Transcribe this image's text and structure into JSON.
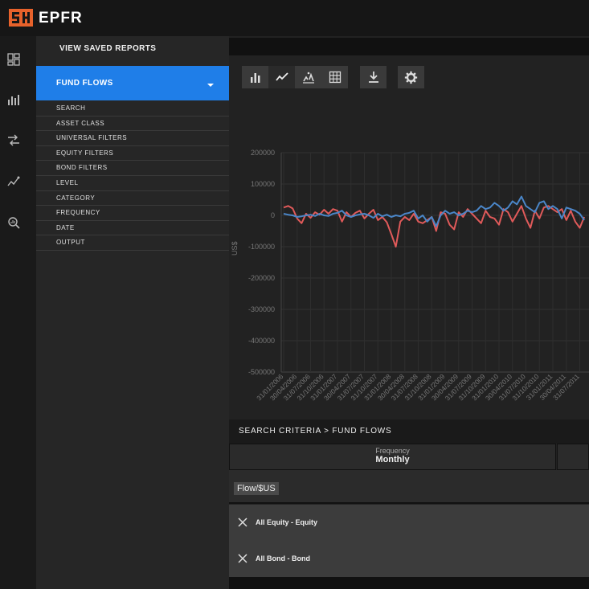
{
  "app": {
    "brand": "EPFR"
  },
  "sidebar": {
    "saved_reports": "VIEW SAVED REPORTS",
    "active_section": "FUND FLOWS",
    "items": [
      {
        "label": "SEARCH"
      },
      {
        "label": "ASSET CLASS"
      },
      {
        "label": "UNIVERSAL FILTERS"
      },
      {
        "label": "EQUITY FILTERS"
      },
      {
        "label": "BOND FILTERS"
      },
      {
        "label": "LEVEL"
      },
      {
        "label": "CATEGORY"
      },
      {
        "label": "FREQUENCY"
      },
      {
        "label": "DATE"
      },
      {
        "label": "OUTPUT"
      }
    ]
  },
  "icons": {
    "rail": [
      "dashboard-icon",
      "bar-chart-icon",
      "flow-icon",
      "trend-icon",
      "search-analytics-icon"
    ],
    "toolbar": [
      "bar-chart-icon",
      "line-chart-icon",
      "scatter-chart-icon",
      "table-grid-icon",
      "download-icon",
      "settings-icon"
    ]
  },
  "colors": {
    "accent": "#1f7ee8",
    "brand": "#e8622b",
    "series_red": "#e05a5a",
    "series_blue": "#4a86c8"
  },
  "chart_data": {
    "type": "line",
    "ylabel": "US$",
    "ylim": [
      -500000,
      200000
    ],
    "yticks": [
      "200000",
      "100000",
      "0",
      "-100000",
      "-200000",
      "-300000",
      "-400000",
      "-500000"
    ],
    "xticks": [
      "31/01/2006",
      "30/04/2006",
      "31/07/2006",
      "31/10/2006",
      "31/01/2007",
      "30/04/2007",
      "31/07/2007",
      "31/10/2007",
      "31/01/2008",
      "30/04/2008",
      "31/07/2008",
      "31/10/2008",
      "31/01/2009",
      "30/04/2009",
      "31/07/2009",
      "31/10/2009",
      "31/01/2010",
      "30/04/2010",
      "31/07/2010",
      "31/10/2010",
      "31/01/2011",
      "30/04/2011",
      "31/07/2011",
      "31/10/2011"
    ],
    "grid": true,
    "series": [
      {
        "color": "#e05a5a",
        "values": [
          25000,
          30000,
          22000,
          -10000,
          -25000,
          5000,
          -8000,
          10000,
          2000,
          18000,
          5000,
          20000,
          15000,
          -20000,
          10000,
          -5000,
          8000,
          15000,
          -10000,
          5000,
          18000,
          -15000,
          -5000,
          -22000,
          -60000,
          -100000,
          -20000,
          -5000,
          -15000,
          5000,
          -20000,
          -25000,
          -15000,
          -5000,
          -50000,
          10000,
          5000,
          -30000,
          -45000,
          10000,
          -5000,
          20000,
          5000,
          -10000,
          -25000,
          15000,
          -5000,
          -10000,
          -30000,
          20000,
          10000,
          -20000,
          5000,
          30000,
          -10000,
          -40000,
          15000,
          -10000,
          25000,
          30000,
          20000,
          10000,
          20000,
          -15000,
          15000,
          -20000,
          -40000,
          -5000
        ],
        "x_start": "31/01/2006",
        "frequency": "Monthly"
      },
      {
        "color": "#4a86c8",
        "values": [
          5000,
          2000,
          0,
          -5000,
          -3000,
          0,
          2000,
          -2000,
          5000,
          0,
          -2000,
          5000,
          8000,
          15000,
          0,
          -5000,
          0,
          3000,
          5000,
          0,
          -8000,
          5000,
          -3000,
          2000,
          -5000,
          0,
          -3000,
          5000,
          8000,
          15000,
          -10000,
          0,
          -20000,
          -5000,
          -35000,
          0,
          15000,
          5000,
          10000,
          0,
          5000,
          15000,
          10000,
          15000,
          30000,
          20000,
          25000,
          40000,
          30000,
          15000,
          25000,
          45000,
          35000,
          60000,
          30000,
          20000,
          10000,
          40000,
          45000,
          20000,
          30000,
          20000,
          -10000,
          25000,
          20000,
          15000,
          5000,
          -15000
        ],
        "x_start": "31/01/2006",
        "frequency": "Monthly"
      }
    ]
  },
  "criteria": {
    "breadcrumb": "SEARCH CRITERIA > FUND FLOWS",
    "frequency_label": "Frequency",
    "frequency_value": "Monthly",
    "flow_tag": "Flow/$US",
    "selections": [
      "All Equity - Equity",
      "All Bond - Bond"
    ]
  }
}
